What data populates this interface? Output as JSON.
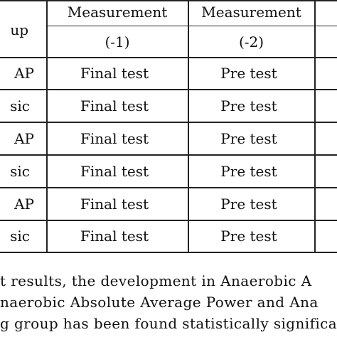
{
  "table": {
    "header": {
      "col0_row1": "up",
      "col1_row1": "Measurement",
      "col2_row1": "Measurement",
      "col1_row2": "(-1)",
      "col2_row2": "(-2)"
    },
    "rows": [
      {
        "group": "AP",
        "m1": "Final test",
        "m2": "Pre test"
      },
      {
        "group": "sic",
        "m1": "Final test",
        "m2": "Pre test"
      },
      {
        "group": "AP",
        "m1": "Final test",
        "m2": "Pre test"
      },
      {
        "group": "sic",
        "m1": "Final test",
        "m2": "Pre test"
      },
      {
        "group": "AP",
        "m1": "Final test",
        "m2": "Pre test"
      },
      {
        "group": "sic",
        "m1": "Final test",
        "m2": "Pre test"
      }
    ]
  },
  "paragraph": {
    "line1": "t results, the development in Anaerobic A",
    "line2": "naerobic Absolute Average Power and Ana",
    "line3": "g group has been found statistically significan"
  }
}
